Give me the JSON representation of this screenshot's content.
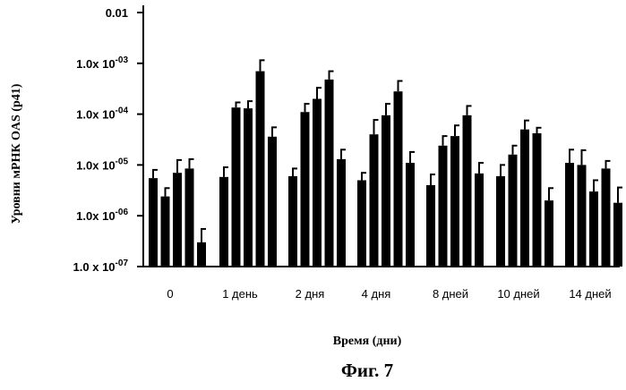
{
  "chart_data": {
    "type": "bar",
    "ylabel": "Уровни мРНК  OAS (p41)",
    "xlabel": "Время (дни)",
    "yscale": "log",
    "ylim": [
      1e-07,
      0.01
    ],
    "ytick_labels": [
      {
        "value": 1e-07,
        "base": "1.0 x 10",
        "exp": "-07"
      },
      {
        "value": 1e-06,
        "base": "1.0x 10",
        "exp": "-06"
      },
      {
        "value": 1e-05,
        "base": "1.0x 10",
        "exp": "-05"
      },
      {
        "value": 0.0001,
        "base": "1.0x 10",
        "exp": "-04"
      },
      {
        "value": 0.001,
        "base": "1.0x 10",
        "exp": "-03"
      },
      {
        "value": 0.01,
        "base": "0.01",
        "exp": ""
      }
    ],
    "categories": [
      "0",
      "1 день",
      "2 дня",
      "4 дня",
      "8 дней",
      "10 дней",
      "14 дней"
    ],
    "groups": [
      {
        "values": [
          5.5e-06,
          2.4e-06,
          7e-06,
          8.5e-06,
          3e-07
        ],
        "errors": [
          8e-06,
          3.5e-06,
          1.25e-05,
          1.3e-05,
          5.5e-07
        ]
      },
      {
        "values": [
          5.8e-06,
          0.000135,
          0.00013,
          0.0007,
          3.6e-05
        ],
        "errors": [
          9e-06,
          0.00017,
          0.00018,
          0.00115,
          5.5e-05
        ]
      },
      {
        "values": [
          6e-06,
          0.00011,
          0.0002,
          0.00048,
          1.3e-05
        ],
        "errors": [
          8.5e-06,
          0.00016,
          0.00033,
          0.0007,
          2e-05
        ]
      },
      {
        "values": [
          5e-06,
          4e-05,
          9.5e-05,
          0.00028,
          1.1e-05
        ],
        "errors": [
          7e-06,
          7.7e-05,
          0.00016,
          0.00045,
          1.8e-05
        ]
      },
      {
        "values": [
          4e-06,
          2.4e-05,
          3.7e-05,
          9.5e-05,
          6.8e-06
        ],
        "errors": [
          6.5e-06,
          3.7e-05,
          6e-05,
          0.000145,
          1.1e-05
        ]
      },
      {
        "values": [
          6e-06,
          1.6e-05,
          5e-05,
          4.2e-05,
          2e-06
        ],
        "errors": [
          1e-05,
          2.4e-05,
          7.5e-05,
          5.4e-05,
          3.5e-06
        ]
      },
      {
        "values": [
          1.1e-05,
          1e-05,
          3e-06,
          8.5e-06,
          1.8e-06
        ],
        "errors": [
          2e-05,
          1.95e-05,
          5e-06,
          1.2e-05,
          3.6e-06
        ]
      }
    ]
  },
  "figure_caption": "Фиг. 7"
}
